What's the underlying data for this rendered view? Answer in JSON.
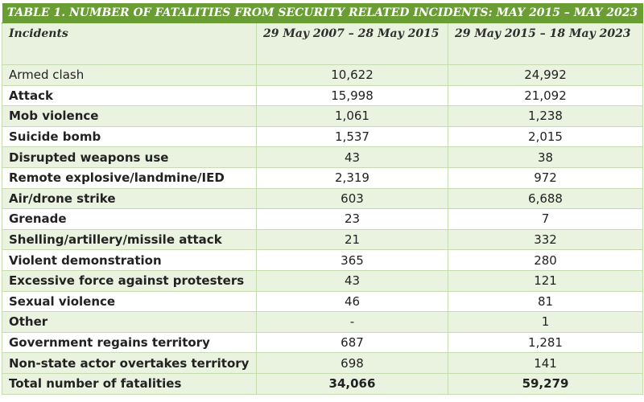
{
  "table": {
    "title": "TABLE 1. NUMBER OF FATALITIES FROM SECURITY RELATED INCIDENTS: MAY 2015 – MAY 2023",
    "headers": [
      "Incidents",
      "29 May 2007 – 28 May 2015",
      "29 May 2015 – 18 May 2023"
    ],
    "rows": [
      {
        "incident": "Armed clash",
        "period1": "10,622",
        "period2": "24,992"
      },
      {
        "incident": "Attack",
        "period1": "15,998",
        "period2": "21,092"
      },
      {
        "incident": "Mob violence",
        "period1": "1,061",
        "period2": "1,238"
      },
      {
        "incident": "Suicide bomb",
        "period1": "1,537",
        "period2": "2,015"
      },
      {
        "incident": "Disrupted weapons use",
        "period1": "43",
        "period2": "38"
      },
      {
        "incident": "Remote explosive/landmine/IED",
        "period1": "2,319",
        "period2": "972"
      },
      {
        "incident": "Air/drone strike",
        "period1": "603",
        "period2": "6,688"
      },
      {
        "incident": "Grenade",
        "period1": "23",
        "period2": "7"
      },
      {
        "incident": "Shelling/artillery/missile attack",
        "period1": "21",
        "period2": "332"
      },
      {
        "incident": "Violent demonstration",
        "period1": "365",
        "period2": "280"
      },
      {
        "incident": "Excessive force against protesters",
        "period1": "43",
        "period2": "121"
      },
      {
        "incident": "Sexual violence",
        "period1": "46",
        "period2": "81"
      },
      {
        "incident": "Other",
        "period1": "-",
        "period2": "1"
      },
      {
        "incident": "Government regains territory",
        "period1": "687",
        "period2": "1,281"
      },
      {
        "incident": "Non-state actor overtakes territory",
        "period1": "698",
        "period2": "141"
      }
    ],
    "total": {
      "label": "Total number of fatalities",
      "period1": "34,066",
      "period2": "59,279"
    }
  },
  "colors": {
    "title_bar": "#6a9e35",
    "row_band": "#eaf2e0",
    "grid_line": "#c7dbb0"
  }
}
